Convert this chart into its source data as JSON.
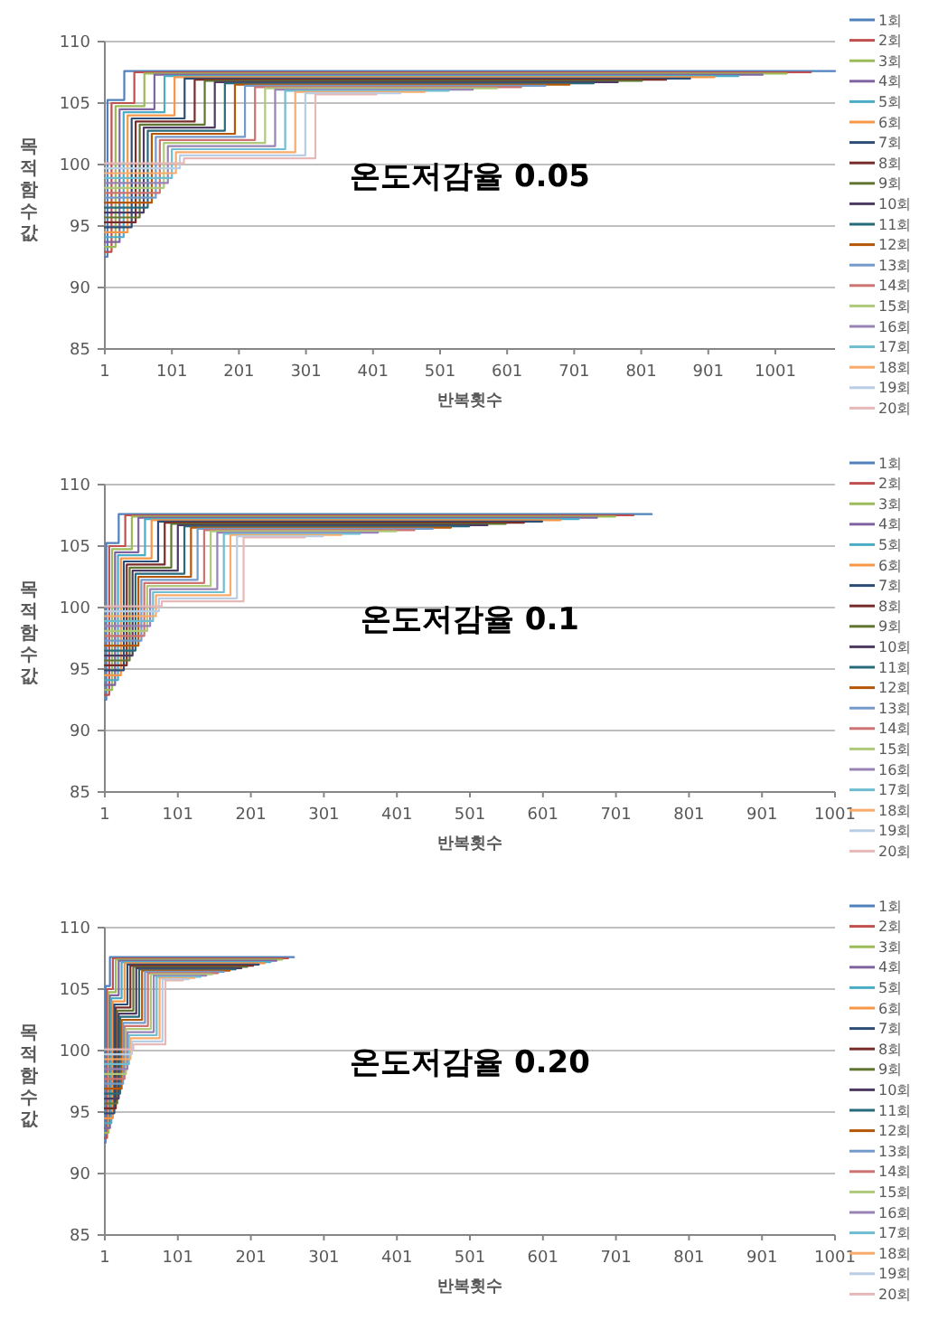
{
  "chart_data": [
    {
      "type": "step",
      "title": "온도저감율 0.05",
      "xlabel": "반복횟수",
      "ylabel": "목적함수값",
      "xlim": [
        1,
        1090
      ],
      "xticks": [
        1,
        101,
        201,
        301,
        401,
        501,
        601,
        701,
        801,
        901,
        1001
      ],
      "ylim": [
        85,
        110
      ],
      "yticks": [
        85,
        90,
        95,
        100,
        105,
        110
      ],
      "grid": "y",
      "legend": "right",
      "series": [
        {
          "name": "1회",
          "color": "#4f81bd",
          "x": [
            1,
            5,
            30,
            1090
          ],
          "values": [
            92.5,
            105.25,
            107.6,
            107.6
          ]
        },
        {
          "name": "2회",
          "color": "#c0504d",
          "x": [
            1,
            11,
            45,
            1054
          ],
          "values": [
            92.9,
            105,
            107.5,
            107.5
          ]
        },
        {
          "name": "3회",
          "color": "#9bbb59",
          "x": [
            1,
            17,
            60,
            1018
          ],
          "values": [
            93.3,
            104.75,
            107.4,
            107.4
          ]
        },
        {
          "name": "4회",
          "color": "#8064a2",
          "x": [
            1,
            23,
            75,
            982
          ],
          "values": [
            93.7,
            104.5,
            107.3,
            107.3
          ]
        },
        {
          "name": "5회",
          "color": "#4bacc6",
          "x": [
            1,
            29,
            90,
            946
          ],
          "values": [
            94.1,
            104.25,
            107.2,
            107.2
          ]
        },
        {
          "name": "6회",
          "color": "#f79646",
          "x": [
            1,
            35,
            105,
            910
          ],
          "values": [
            94.5,
            104,
            107.1,
            107.1
          ]
        },
        {
          "name": "7회",
          "color": "#2c4d75",
          "x": [
            1,
            41,
            120,
            874
          ],
          "values": [
            94.9,
            103.75,
            107,
            107
          ]
        },
        {
          "name": "8회",
          "color": "#772c2a",
          "x": [
            1,
            47,
            135,
            838
          ],
          "values": [
            95.3,
            103.5,
            106.9,
            106.9
          ]
        },
        {
          "name": "9회",
          "color": "#5f7530",
          "x": [
            1,
            53,
            150,
            802
          ],
          "values": [
            95.7,
            103.25,
            106.8,
            106.8
          ]
        },
        {
          "name": "10회",
          "color": "#4d3b62",
          "x": [
            1,
            59,
            165,
            766
          ],
          "values": [
            96.1,
            103,
            106.7,
            106.7
          ]
        },
        {
          "name": "11회",
          "color": "#276a7c",
          "x": [
            1,
            65,
            180,
            730
          ],
          "values": [
            96.5,
            102.75,
            106.6,
            106.6
          ]
        },
        {
          "name": "12회",
          "color": "#b65708",
          "x": [
            1,
            71,
            195,
            694
          ],
          "values": [
            96.9,
            102.5,
            106.5,
            106.5
          ]
        },
        {
          "name": "13회",
          "color": "#729aca",
          "x": [
            1,
            77,
            210,
            658
          ],
          "values": [
            97.3,
            102.25,
            106.4,
            106.4
          ]
        },
        {
          "name": "14회",
          "color": "#cd7371",
          "x": [
            1,
            83,
            225,
            622
          ],
          "values": [
            97.7,
            102,
            106.3,
            106.3
          ]
        },
        {
          "name": "15회",
          "color": "#afc97a",
          "x": [
            1,
            89,
            240,
            586
          ],
          "values": [
            98.1,
            101.75,
            106.2,
            106.2
          ]
        },
        {
          "name": "16회",
          "color": "#9983b5",
          "x": [
            1,
            95,
            255,
            550
          ],
          "values": [
            98.5,
            101.5,
            106.1,
            106.1
          ]
        },
        {
          "name": "17회",
          "color": "#6fbdd1",
          "x": [
            1,
            101,
            270,
            514
          ],
          "values": [
            98.9,
            101.25,
            106,
            106
          ]
        },
        {
          "name": "18회",
          "color": "#f9ab6b",
          "x": [
            1,
            107,
            285,
            478
          ],
          "values": [
            99.3,
            101,
            105.9,
            105.9
          ]
        },
        {
          "name": "19회",
          "color": "#b9cde5",
          "x": [
            1,
            113,
            300,
            442
          ],
          "values": [
            99.7,
            100.75,
            105.8,
            105.8
          ]
        },
        {
          "name": "20회",
          "color": "#e6b9b8",
          "x": [
            1,
            119,
            315,
            406
          ],
          "values": [
            100.1,
            100.5,
            105.7,
            105.7
          ]
        }
      ]
    },
    {
      "type": "step",
      "title": "온도저감율 0.1",
      "xlabel": "반복횟수",
      "ylabel": "목적함수값",
      "xlim": [
        1,
        1001
      ],
      "xticks": [
        1,
        101,
        201,
        301,
        401,
        501,
        601,
        701,
        801,
        901,
        1001
      ],
      "ylim": [
        85,
        110
      ],
      "yticks": [
        85,
        90,
        95,
        100,
        105,
        110
      ],
      "grid": "y",
      "legend": "right",
      "series": [
        {
          "name": "1회",
          "color": "#4f81bd",
          "x": [
            1,
            3,
            20,
            750
          ],
          "values": [
            92.5,
            105.25,
            107.6,
            107.6
          ]
        },
        {
          "name": "2회",
          "color": "#c0504d",
          "x": [
            1,
            7,
            29,
            725
          ],
          "values": [
            92.9,
            105,
            107.5,
            107.5
          ]
        },
        {
          "name": "3회",
          "color": "#9bbb59",
          "x": [
            1,
            11,
            38,
            700
          ],
          "values": [
            93.3,
            104.75,
            107.4,
            107.4
          ]
        },
        {
          "name": "4회",
          "color": "#8064a2",
          "x": [
            1,
            15,
            47,
            675
          ],
          "values": [
            93.7,
            104.5,
            107.3,
            107.3
          ]
        },
        {
          "name": "5회",
          "color": "#4bacc6",
          "x": [
            1,
            19,
            56,
            650
          ],
          "values": [
            94.1,
            104.25,
            107.2,
            107.2
          ]
        },
        {
          "name": "6회",
          "color": "#f79646",
          "x": [
            1,
            23,
            65,
            625
          ],
          "values": [
            94.5,
            104,
            107.1,
            107.1
          ]
        },
        {
          "name": "7회",
          "color": "#2c4d75",
          "x": [
            1,
            27,
            74,
            600
          ],
          "values": [
            94.9,
            103.75,
            107,
            107
          ]
        },
        {
          "name": "8회",
          "color": "#772c2a",
          "x": [
            1,
            31,
            83,
            575
          ],
          "values": [
            95.3,
            103.5,
            106.9,
            106.9
          ]
        },
        {
          "name": "9회",
          "color": "#5f7530",
          "x": [
            1,
            35,
            92,
            550
          ],
          "values": [
            95.7,
            103.25,
            106.8,
            106.8
          ]
        },
        {
          "name": "10회",
          "color": "#4d3b62",
          "x": [
            1,
            39,
            101,
            525
          ],
          "values": [
            96.1,
            103,
            106.7,
            106.7
          ]
        },
        {
          "name": "11회",
          "color": "#276a7c",
          "x": [
            1,
            43,
            110,
            500
          ],
          "values": [
            96.5,
            102.75,
            106.6,
            106.6
          ]
        },
        {
          "name": "12회",
          "color": "#b65708",
          "x": [
            1,
            47,
            119,
            475
          ],
          "values": [
            96.9,
            102.5,
            106.5,
            106.5
          ]
        },
        {
          "name": "13회",
          "color": "#729aca",
          "x": [
            1,
            51,
            128,
            450
          ],
          "values": [
            97.3,
            102.25,
            106.4,
            106.4
          ]
        },
        {
          "name": "14회",
          "color": "#cd7371",
          "x": [
            1,
            55,
            137,
            425
          ],
          "values": [
            97.7,
            102,
            106.3,
            106.3
          ]
        },
        {
          "name": "15회",
          "color": "#afc97a",
          "x": [
            1,
            59,
            146,
            400
          ],
          "values": [
            98.1,
            101.75,
            106.2,
            106.2
          ]
        },
        {
          "name": "16회",
          "color": "#9983b5",
          "x": [
            1,
            63,
            155,
            375
          ],
          "values": [
            98.5,
            101.5,
            106.1,
            106.1
          ]
        },
        {
          "name": "17회",
          "color": "#6fbdd1",
          "x": [
            1,
            67,
            164,
            350
          ],
          "values": [
            98.9,
            101.25,
            106,
            106
          ]
        },
        {
          "name": "18회",
          "color": "#f9ab6b",
          "x": [
            1,
            71,
            173,
            325
          ],
          "values": [
            99.3,
            101,
            105.9,
            105.9
          ]
        },
        {
          "name": "19회",
          "color": "#b9cde5",
          "x": [
            1,
            75,
            182,
            300
          ],
          "values": [
            99.7,
            100.75,
            105.8,
            105.8
          ]
        },
        {
          "name": "20회",
          "color": "#e6b9b8",
          "x": [
            1,
            79,
            191,
            275
          ],
          "values": [
            100.1,
            100.5,
            105.7,
            105.7
          ]
        }
      ]
    },
    {
      "type": "step",
      "title": "온도저감율 0.20",
      "xlabel": "반복횟수",
      "ylabel": "목적함수값",
      "xlim": [
        1,
        1001
      ],
      "xticks": [
        1,
        101,
        201,
        301,
        401,
        501,
        601,
        701,
        801,
        901,
        1001
      ],
      "ylim": [
        85,
        110
      ],
      "yticks": [
        85,
        90,
        95,
        100,
        105,
        110
      ],
      "grid": "y",
      "legend": "right",
      "series": [
        {
          "name": "1회",
          "color": "#4f81bd",
          "x": [
            1,
            2,
            8,
            260
          ],
          "values": [
            92.5,
            105.25,
            107.6,
            107.6
          ]
        },
        {
          "name": "2회",
          "color": "#c0504d",
          "x": [
            1,
            4,
            12,
            252
          ],
          "values": [
            92.9,
            105,
            107.5,
            107.5
          ]
        },
        {
          "name": "3회",
          "color": "#9bbb59",
          "x": [
            1,
            6,
            16,
            244
          ],
          "values": [
            93.3,
            104.75,
            107.4,
            107.4
          ]
        },
        {
          "name": "4회",
          "color": "#8064a2",
          "x": [
            1,
            8,
            20,
            236
          ],
          "values": [
            93.7,
            104.5,
            107.3,
            107.3
          ]
        },
        {
          "name": "5회",
          "color": "#4bacc6",
          "x": [
            1,
            10,
            24,
            228
          ],
          "values": [
            94.1,
            104.25,
            107.2,
            107.2
          ]
        },
        {
          "name": "6회",
          "color": "#f79646",
          "x": [
            1,
            12,
            28,
            220
          ],
          "values": [
            94.5,
            104,
            107.1,
            107.1
          ]
        },
        {
          "name": "7회",
          "color": "#2c4d75",
          "x": [
            1,
            14,
            32,
            212
          ],
          "values": [
            94.9,
            103.75,
            107,
            107
          ]
        },
        {
          "name": "8회",
          "color": "#772c2a",
          "x": [
            1,
            16,
            36,
            204
          ],
          "values": [
            95.3,
            103.5,
            106.9,
            106.9
          ]
        },
        {
          "name": "9회",
          "color": "#5f7530",
          "x": [
            1,
            18,
            40,
            196
          ],
          "values": [
            95.7,
            103.25,
            106.8,
            106.8
          ]
        },
        {
          "name": "10회",
          "color": "#4d3b62",
          "x": [
            1,
            20,
            44,
            188
          ],
          "values": [
            96.1,
            103,
            106.7,
            106.7
          ]
        },
        {
          "name": "11회",
          "color": "#276a7c",
          "x": [
            1,
            22,
            48,
            180
          ],
          "values": [
            96.5,
            102.75,
            106.6,
            106.6
          ]
        },
        {
          "name": "12회",
          "color": "#b65708",
          "x": [
            1,
            24,
            52,
            172
          ],
          "values": [
            96.9,
            102.5,
            106.5,
            106.5
          ]
        },
        {
          "name": "13회",
          "color": "#729aca",
          "x": [
            1,
            26,
            56,
            164
          ],
          "values": [
            97.3,
            102.25,
            106.4,
            106.4
          ]
        },
        {
          "name": "14회",
          "color": "#cd7371",
          "x": [
            1,
            28,
            60,
            156
          ],
          "values": [
            97.7,
            102,
            106.3,
            106.3
          ]
        },
        {
          "name": "15회",
          "color": "#afc97a",
          "x": [
            1,
            30,
            64,
            148
          ],
          "values": [
            98.1,
            101.75,
            106.2,
            106.2
          ]
        },
        {
          "name": "16회",
          "color": "#9983b5",
          "x": [
            1,
            32,
            68,
            140
          ],
          "values": [
            98.5,
            101.5,
            106.1,
            106.1
          ]
        },
        {
          "name": "17회",
          "color": "#6fbdd1",
          "x": [
            1,
            34,
            72,
            132
          ],
          "values": [
            98.9,
            101.25,
            106,
            106
          ]
        },
        {
          "name": "18회",
          "color": "#f9ab6b",
          "x": [
            1,
            36,
            76,
            124
          ],
          "values": [
            99.3,
            101,
            105.9,
            105.9
          ]
        },
        {
          "name": "19회",
          "color": "#b9cde5",
          "x": [
            1,
            38,
            80,
            116
          ],
          "values": [
            99.7,
            100.75,
            105.8,
            105.8
          ]
        },
        {
          "name": "20회",
          "color": "#e6b9b8",
          "x": [
            1,
            40,
            84,
            108
          ],
          "values": [
            100.1,
            100.5,
            105.7,
            105.7
          ]
        }
      ]
    }
  ]
}
